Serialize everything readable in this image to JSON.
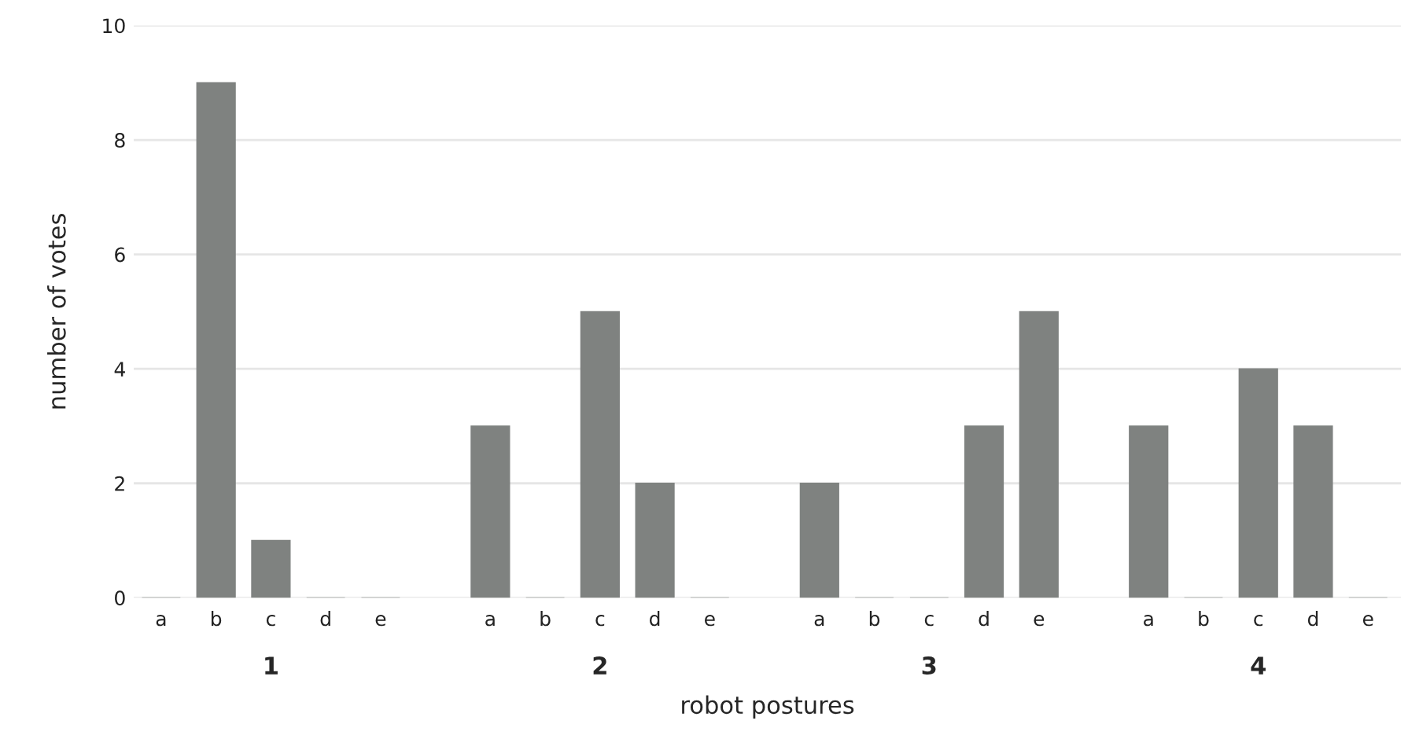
{
  "chart_data": {
    "type": "bar",
    "xlabel": "robot postures",
    "ylabel": "number of votes",
    "categories": [
      "a",
      "b",
      "c",
      "d",
      "e",
      null,
      "a",
      "b",
      "c",
      "d",
      "e",
      null,
      "a",
      "b",
      "c",
      "d",
      "e",
      null,
      "a",
      "b",
      "c",
      "d",
      "e"
    ],
    "values": [
      0,
      9,
      1,
      0,
      0,
      null,
      3,
      0,
      5,
      2,
      0,
      null,
      2,
      0,
      0,
      3,
      5,
      null,
      3,
      0,
      4,
      3,
      0
    ],
    "color": "#7f8280",
    "ylim": [
      0,
      10
    ],
    "yticks": [
      0,
      2,
      4,
      6,
      8,
      10
    ],
    "grid": "y",
    "annotations": [
      "1",
      "2",
      "3",
      "4"
    ]
  }
}
